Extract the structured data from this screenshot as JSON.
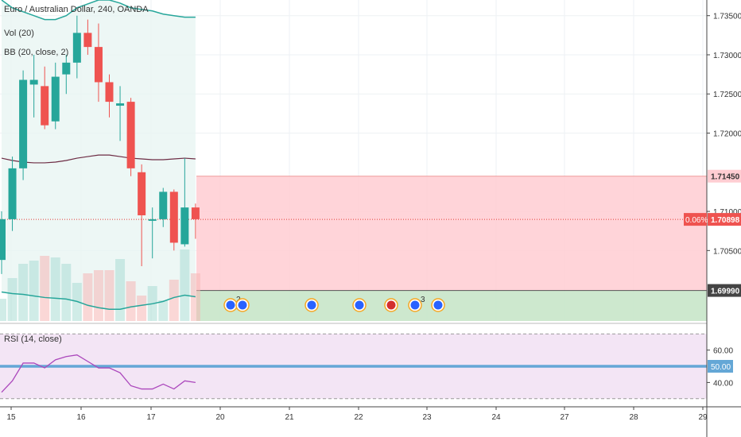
{
  "chart_data": {
    "type": "candlestick",
    "symbol": "Euro / Australian Dollar, 240, OANDA",
    "indicators": [
      "Vol (20)",
      "BB (20, close, 2)"
    ],
    "price_axis": {
      "ticks": [
        "1.73500",
        "1.73000",
        "1.72500",
        "1.72000",
        "1.71000",
        "1.70500"
      ],
      "ylim": [
        1.696,
        1.737
      ]
    },
    "x_axis": {
      "labels": [
        "15",
        "16",
        "17",
        "20",
        "21",
        "22",
        "23",
        "24",
        "27",
        "28",
        "29"
      ]
    },
    "candles": [
      {
        "o": 1.7038,
        "h": 1.71,
        "l": 1.702,
        "c": 1.709
      },
      {
        "o": 1.709,
        "h": 1.717,
        "l": 1.7075,
        "c": 1.7155
      },
      {
        "o": 1.7155,
        "h": 1.728,
        "l": 1.714,
        "c": 1.7268
      },
      {
        "o": 1.7262,
        "h": 1.73,
        "l": 1.722,
        "c": 1.7268
      },
      {
        "o": 1.726,
        "h": 1.7285,
        "l": 1.7205,
        "c": 1.721
      },
      {
        "o": 1.7215,
        "h": 1.729,
        "l": 1.7205,
        "c": 1.7272
      },
      {
        "o": 1.7275,
        "h": 1.73,
        "l": 1.725,
        "c": 1.729
      },
      {
        "o": 1.729,
        "h": 1.735,
        "l": 1.727,
        "c": 1.7328
      },
      {
        "o": 1.7328,
        "h": 1.7345,
        "l": 1.73,
        "c": 1.731
      },
      {
        "o": 1.731,
        "h": 1.734,
        "l": 1.724,
        "c": 1.7265
      },
      {
        "o": 1.7265,
        "h": 1.7275,
        "l": 1.722,
        "c": 1.724
      },
      {
        "o": 1.7235,
        "h": 1.726,
        "l": 1.719,
        "c": 1.7238
      },
      {
        "o": 1.724,
        "h": 1.7245,
        "l": 1.7145,
        "c": 1.7155
      },
      {
        "o": 1.715,
        "h": 1.716,
        "l": 1.703,
        "c": 1.7095
      },
      {
        "o": 1.709,
        "h": 1.7105,
        "l": 1.704,
        "c": 1.709
      },
      {
        "o": 1.709,
        "h": 1.713,
        "l": 1.708,
        "c": 1.7125
      },
      {
        "o": 1.7125,
        "h": 1.7128,
        "l": 1.705,
        "c": 1.706
      },
      {
        "o": 1.7058,
        "h": 1.7168,
        "l": 1.7055,
        "c": 1.7105
      },
      {
        "o": 1.7105,
        "h": 1.711,
        "l": 1.7065,
        "c": 1.709
      }
    ],
    "volume": [
      14,
      27,
      36,
      38,
      41,
      40,
      36,
      24,
      30,
      32,
      32,
      39,
      25,
      16,
      22,
      13,
      26,
      45,
      30
    ],
    "bollinger": {
      "upper": [
        1.737,
        1.736,
        1.7355,
        1.735,
        1.7345,
        1.7345,
        1.735,
        1.736,
        1.7365,
        1.737,
        1.737,
        1.7366,
        1.736,
        1.7358,
        1.7356,
        1.7352,
        1.735,
        1.7348,
        1.7348
      ],
      "middle": [
        1.7168,
        1.7165,
        1.7163,
        1.7162,
        1.7162,
        1.7163,
        1.7165,
        1.7168,
        1.717,
        1.7172,
        1.7172,
        1.717,
        1.7168,
        1.7167,
        1.7166,
        1.7166,
        1.7167,
        1.7168,
        1.7167
      ],
      "lower": [
        1.6997,
        1.6995,
        1.6994,
        1.6992,
        1.699,
        1.6989,
        1.6988,
        1.6985,
        1.698,
        1.6977,
        1.6975,
        1.6975,
        1.6978,
        1.698,
        1.6982,
        1.6985,
        1.699,
        1.6993,
        1.6991
      ]
    },
    "position": {
      "stop_level": "1.71450",
      "target_level": "1.69990",
      "entry": {
        "value": 1.70898,
        "change": "0.06%",
        "label": "1.70898"
      },
      "stop": 1.7145,
      "target": 1.6999
    },
    "events": [
      {
        "count": "2",
        "color": "#2962ff"
      },
      {
        "count": "",
        "color": "#2962ff"
      },
      {
        "count": "",
        "color": "#2962ff"
      },
      {
        "count": "",
        "color": "#2962ff"
      },
      {
        "count": "",
        "color": "#d32f2f"
      },
      {
        "count": "3",
        "color": "#2962ff"
      },
      {
        "count": "",
        "color": "#2962ff"
      }
    ],
    "rsi": {
      "label": "RSI (14, close)",
      "ticks": [
        "60.00",
        "40.00"
      ],
      "marker_label": "50.00",
      "levels": {
        "upper": 70,
        "middle": 50,
        "lower": 30
      },
      "ylim": [
        25,
        75
      ],
      "values": [
        34,
        41,
        52,
        52,
        49,
        54,
        56,
        57,
        53,
        49,
        49,
        46,
        38,
        36,
        36,
        39,
        36,
        41,
        40
      ]
    },
    "colors": {
      "up": "#26a69a",
      "down": "#ef5350",
      "bb_band": "#26a69a",
      "bb_mid": "#6d2c44",
      "stop_fill": "#ffcdd2",
      "target_fill": "#c8e6c9",
      "rsi_line": "#ab47bc",
      "rsi_fill": "#f3e5f5",
      "rsi_mid": "#64a7d6"
    }
  }
}
